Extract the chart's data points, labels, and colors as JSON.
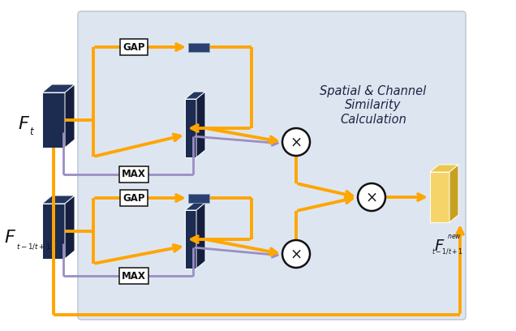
{
  "bg_color": "#dde6f0",
  "orange": "#FFA500",
  "purple": "#9B8EC4",
  "dark_blue": "#1C2B50",
  "dark_blue2": "#253660",
  "dark_blue3": "#151E3F",
  "yellow_front": "#F5D46A",
  "yellow_top": "#ECC84A",
  "yellow_right": "#C8A020",
  "white": "#FFFFFF",
  "black": "#111111",
  "title": "Spatial & Channel\nSimilarity\nCalculation",
  "label_Ft": "F",
  "label_Ft_sub": "t",
  "label_Ft1": "F",
  "label_Ft1_sub": "t-1/t+1",
  "label_Fnew_base": "F",
  "label_Fnew_sub": "t-1/t+1",
  "label_Fnew_sup": "new"
}
